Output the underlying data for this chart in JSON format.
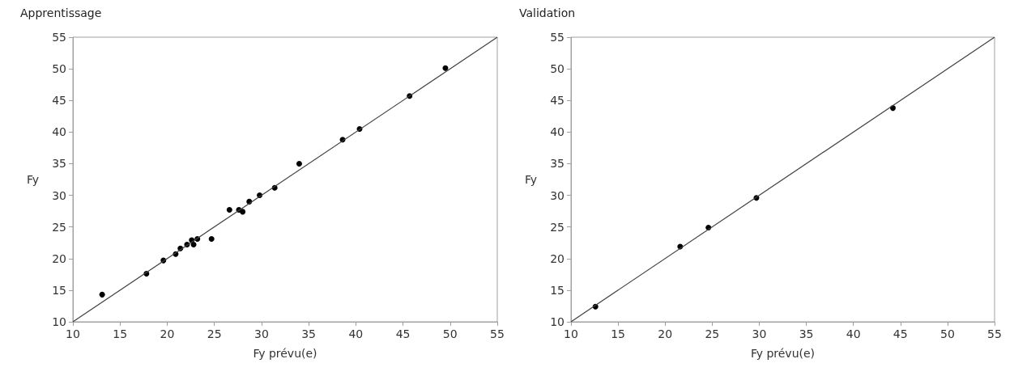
{
  "chart_data": [
    {
      "type": "scatter",
      "title": "Apprentissage",
      "xlabel": "Fy prévu(e)",
      "ylabel": "Fy",
      "xlim": [
        10,
        55
      ],
      "xticks": [
        10,
        15,
        20,
        25,
        30,
        35,
        40,
        45,
        50,
        55
      ],
      "ylim": [
        10,
        55
      ],
      "yticks": [
        10,
        15,
        20,
        25,
        30,
        35,
        40,
        45,
        50,
        55
      ],
      "series": [
        {
          "color": "#000000",
          "marker": "circle",
          "x": [
            13.1,
            17.8,
            19.6,
            20.9,
            21.4,
            22.1,
            22.6,
            22.8,
            23.2,
            24.7,
            26.6,
            27.6,
            28.0,
            28.7,
            29.8,
            31.4,
            34.0,
            38.6,
            40.4,
            45.7,
            49.5
          ],
          "values": [
            14.3,
            17.6,
            19.7,
            20.7,
            21.6,
            22.2,
            22.9,
            22.2,
            23.1,
            23.1,
            27.7,
            27.7,
            27.4,
            29.0,
            30.0,
            31.2,
            35.0,
            38.8,
            40.5,
            45.7,
            50.1
          ]
        },
        {
          "type": "line",
          "color": "#404040",
          "line_style": "solid",
          "x": [
            10,
            55
          ],
          "values": [
            10,
            55
          ]
        }
      ]
    },
    {
      "type": "scatter",
      "title": "Validation",
      "xlabel": "Fy prévu(e)",
      "ylabel": "Fy",
      "xlim": [
        10,
        55
      ],
      "xticks": [
        10,
        15,
        20,
        25,
        30,
        35,
        40,
        45,
        50,
        55
      ],
      "ylim": [
        10,
        55
      ],
      "yticks": [
        10,
        15,
        20,
        25,
        30,
        35,
        40,
        45,
        50,
        55
      ],
      "series": [
        {
          "color": "#000000",
          "marker": "circle",
          "x": [
            12.6,
            21.6,
            24.6,
            29.7,
            44.2
          ],
          "values": [
            12.4,
            21.9,
            24.9,
            29.6,
            43.8
          ]
        },
        {
          "type": "line",
          "color": "#404040",
          "line_style": "solid",
          "x": [
            10,
            55
          ],
          "values": [
            10,
            55
          ]
        }
      ]
    }
  ]
}
